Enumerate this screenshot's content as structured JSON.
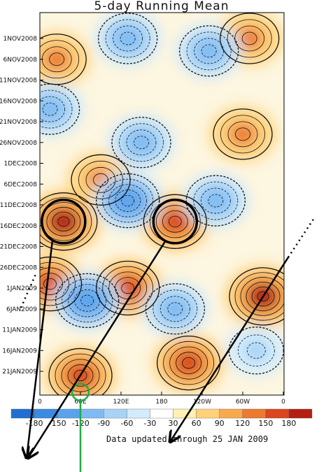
{
  "chart_data": {
    "type": "heatmap",
    "title": "5-day Running Mean",
    "footer": "Data updated through 25 JAN 2009",
    "x_tick_labels": [
      "0",
      "60E",
      "120E",
      "180",
      "120W",
      "60W",
      "0"
    ],
    "y_tick_labels": [
      "1NOV2008",
      "6NOV2008",
      "11NOV2008",
      "16NOV2008",
      "21NOV2008",
      "26NOV2008",
      "1DEC2008",
      "6DEC2008",
      "11DEC2008",
      "16DEC2008",
      "21DEC2008",
      "26DEC2008",
      "1JAN2009",
      "6JAN2009",
      "11JAN2009",
      "16JAN2009",
      "21JAN2009"
    ],
    "colorbar": {
      "labels": [
        "-180",
        "-150",
        "-120",
        "-90",
        "-60",
        "-30",
        "30",
        "60",
        "90",
        "120",
        "150",
        "180"
      ],
      "colors": [
        "#1f6fd0",
        "#3b8be0",
        "#5aa3ec",
        "#7fbbf2",
        "#a7d3f7",
        "#d3ecfb",
        "#ffffff",
        "#fff0b3",
        "#ffd27a",
        "#f8a94e",
        "#ec7a33",
        "#d9461f",
        "#b31e12"
      ]
    },
    "features": [
      {
        "kind": "positive",
        "lon": 35,
        "date": "15DEC2008",
        "value": 180
      },
      {
        "kind": "positive",
        "lon": 200,
        "date": "15DEC2008",
        "value": 150
      },
      {
        "kind": "positive",
        "lon": 15,
        "date": "30DEC2008",
        "value": 150
      },
      {
        "kind": "positive",
        "lon": 130,
        "date": "31DEC2008",
        "value": 150
      },
      {
        "kind": "positive",
        "lon": 330,
        "date": "2JAN2009",
        "value": 180
      },
      {
        "kind": "positive",
        "lon": 220,
        "date": "18JAN2009",
        "value": 150
      },
      {
        "kind": "positive",
        "lon": 60,
        "date": "21JAN2009",
        "value": 150
      },
      {
        "kind": "positive",
        "lon": 300,
        "date": "24NOV2008",
        "value": 120
      },
      {
        "kind": "positive",
        "lon": 90,
        "date": "5DEC2008",
        "value": 120
      },
      {
        "kind": "positive",
        "lon": 25,
        "date": "6NOV2008",
        "value": 120
      },
      {
        "kind": "positive",
        "lon": 310,
        "date": "1NOV2008",
        "value": 120
      },
      {
        "kind": "negative",
        "lon": 130,
        "date": "10DEC2008",
        "value": -150
      },
      {
        "kind": "negative",
        "lon": 70,
        "date": "3JAN2009",
        "value": -150
      },
      {
        "kind": "negative",
        "lon": 260,
        "date": "10DEC2008",
        "value": -120
      },
      {
        "kind": "negative",
        "lon": 200,
        "date": "5JAN2009",
        "value": -120
      },
      {
        "kind": "negative",
        "lon": 250,
        "date": "4NOV2008",
        "value": -120
      },
      {
        "kind": "negative",
        "lon": 130,
        "date": "1NOV2008",
        "value": -120
      },
      {
        "kind": "negative",
        "lon": 15,
        "date": "18NOV2008",
        "value": -120
      },
      {
        "kind": "negative",
        "lon": 150,
        "date": "26NOV2008",
        "value": -120
      },
      {
        "kind": "negative",
        "lon": 320,
        "date": "15JAN2009",
        "value": -90
      }
    ],
    "annotations": {
      "circles": [
        {
          "lon": 35,
          "date": "15DEC2008",
          "color": "#000000"
        },
        {
          "lon": 200,
          "date": "15DEC2008",
          "color": "#000000"
        },
        {
          "lon": 60,
          "date": "25JAN2009",
          "color": "#22aa44"
        }
      ]
    }
  }
}
